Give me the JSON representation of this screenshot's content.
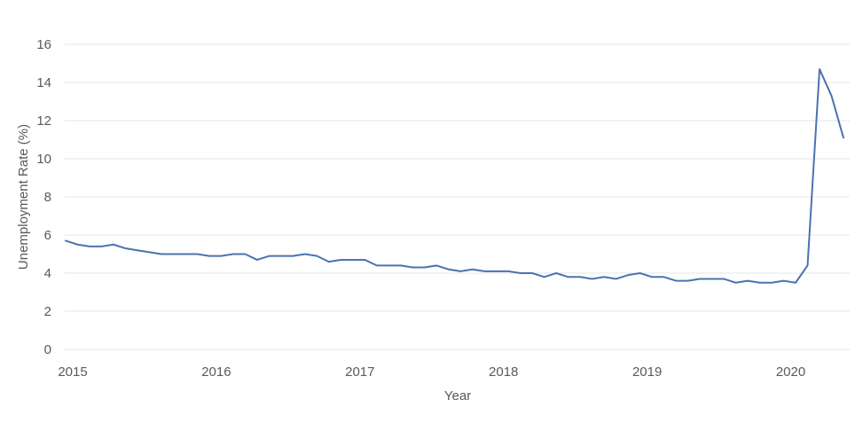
{
  "chart_data": {
    "type": "line",
    "title": "",
    "xlabel": "Year",
    "ylabel": "Unemployment Rate (%)",
    "x_tick_labels": [
      "2015",
      "2016",
      "2017",
      "2018",
      "2019",
      "2020"
    ],
    "y_tick_labels": [
      "0",
      "2",
      "4",
      "6",
      "8",
      "10",
      "12",
      "14",
      "16"
    ],
    "ylim": [
      0,
      16
    ],
    "xlim": [
      "2015-01",
      "2020-06"
    ],
    "grid": "horizontal",
    "legend": "none",
    "line_color": "#4c72b0",
    "x": [
      "2015-01",
      "2015-02",
      "2015-03",
      "2015-04",
      "2015-05",
      "2015-06",
      "2015-07",
      "2015-08",
      "2015-09",
      "2015-10",
      "2015-11",
      "2015-12",
      "2016-01",
      "2016-02",
      "2016-03",
      "2016-04",
      "2016-05",
      "2016-06",
      "2016-07",
      "2016-08",
      "2016-09",
      "2016-10",
      "2016-11",
      "2016-12",
      "2017-01",
      "2017-02",
      "2017-03",
      "2017-04",
      "2017-05",
      "2017-06",
      "2017-07",
      "2017-08",
      "2017-09",
      "2017-10",
      "2017-11",
      "2017-12",
      "2018-01",
      "2018-02",
      "2018-03",
      "2018-04",
      "2018-05",
      "2018-06",
      "2018-07",
      "2018-08",
      "2018-09",
      "2018-10",
      "2018-11",
      "2018-12",
      "2019-01",
      "2019-02",
      "2019-03",
      "2019-04",
      "2019-05",
      "2019-06",
      "2019-07",
      "2019-08",
      "2019-09",
      "2019-10",
      "2019-11",
      "2019-12",
      "2020-01",
      "2020-02",
      "2020-03",
      "2020-04",
      "2020-05",
      "2020-06"
    ],
    "series": [
      {
        "values": [
          5.7,
          5.5,
          5.4,
          5.4,
          5.5,
          5.3,
          5.2,
          5.1,
          5.0,
          5.0,
          5.0,
          5.0,
          4.9,
          4.9,
          5.0,
          5.0,
          4.7,
          4.9,
          4.9,
          4.9,
          5.0,
          4.9,
          4.6,
          4.7,
          4.7,
          4.7,
          4.4,
          4.4,
          4.4,
          4.3,
          4.3,
          4.4,
          4.2,
          4.1,
          4.2,
          4.1,
          4.1,
          4.1,
          4.0,
          4.0,
          3.8,
          4.0,
          3.8,
          3.8,
          3.7,
          3.8,
          3.7,
          3.9,
          4.0,
          3.8,
          3.8,
          3.6,
          3.6,
          3.7,
          3.7,
          3.7,
          3.5,
          3.6,
          3.5,
          3.5,
          3.6,
          3.5,
          4.4,
          14.7,
          13.3,
          11.1
        ]
      }
    ]
  }
}
